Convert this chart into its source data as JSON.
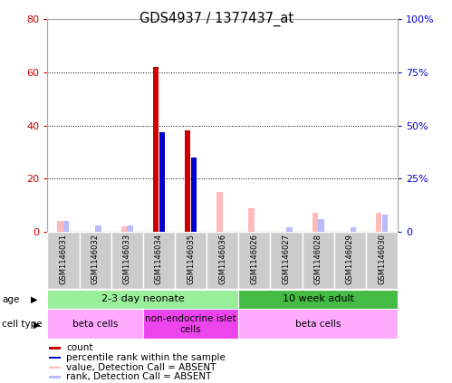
{
  "title": "GDS4937 / 1377437_at",
  "samples": [
    "GSM1146031",
    "GSM1146032",
    "GSM1146033",
    "GSM1146034",
    "GSM1146035",
    "GSM1146036",
    "GSM1146026",
    "GSM1146027",
    "GSM1146028",
    "GSM1146029",
    "GSM1146030"
  ],
  "count_values": [
    0,
    0,
    0,
    62,
    38,
    0,
    0,
    0,
    0,
    0,
    0
  ],
  "rank_values": [
    0,
    0,
    0,
    47,
    35,
    0,
    0,
    0,
    0,
    0,
    0
  ],
  "absent_value_values": [
    4,
    0,
    2,
    0,
    0,
    15,
    9,
    0,
    7,
    0,
    7
  ],
  "absent_rank_values": [
    5,
    3,
    3,
    0,
    0,
    0,
    0,
    2,
    6,
    2,
    8
  ],
  "count_color": "#cc0000",
  "rank_color": "#0000cc",
  "absent_value_color": "#ffbbbb",
  "absent_rank_color": "#bbbbff",
  "ylim_left": [
    0,
    80
  ],
  "ylim_right": [
    0,
    100
  ],
  "yticks_left": [
    0,
    20,
    40,
    60,
    80
  ],
  "yticks_right": [
    0,
    25,
    50,
    75,
    100
  ],
  "ytick_labels_left": [
    "0",
    "20",
    "40",
    "60",
    "80"
  ],
  "ytick_labels_right": [
    "0",
    "25%",
    "50%",
    "75%",
    "100%"
  ],
  "age_groups": [
    {
      "label": "2-3 day neonate",
      "start": 0,
      "end": 6,
      "color": "#99ee99"
    },
    {
      "label": "10 week adult",
      "start": 6,
      "end": 11,
      "color": "#44bb44"
    }
  ],
  "cell_type_groups": [
    {
      "label": "beta cells",
      "start": 0,
      "end": 3,
      "color": "#ffaaff"
    },
    {
      "label": "non-endocrine islet\ncells",
      "start": 3,
      "end": 6,
      "color": "#ee44ee"
    },
    {
      "label": "beta cells",
      "start": 6,
      "end": 11,
      "color": "#ffaaff"
    }
  ],
  "legend_items": [
    {
      "label": "count",
      "color": "#cc0000"
    },
    {
      "label": "percentile rank within the sample",
      "color": "#0000cc"
    },
    {
      "label": "value, Detection Call = ABSENT",
      "color": "#ffbbbb"
    },
    {
      "label": "rank, Detection Call = ABSENT",
      "color": "#bbbbff"
    }
  ],
  "background_color": "#ffffff",
  "label_color_left": "#cc0000",
  "label_color_right": "#0000cc",
  "sample_box_color": "#cccccc",
  "border_color": "#888888"
}
